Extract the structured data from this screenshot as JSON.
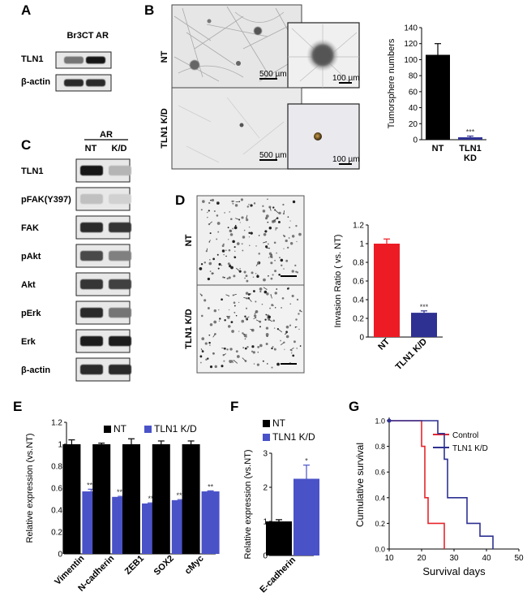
{
  "panels": {
    "A": {
      "letter": "A",
      "lanes": [
        "Br3CT",
        "AR"
      ],
      "rows": [
        {
          "label": "TLN1",
          "bands": [
            0.55,
            1.0
          ]
        },
        {
          "label": "β-actin",
          "bands": [
            0.9,
            0.9
          ]
        }
      ]
    },
    "B": {
      "letter": "B",
      "rows": [
        {
          "label": "NT",
          "scale_main": "500 µm",
          "scale_inset": "100 µm"
        },
        {
          "label": "TLN1 K/D",
          "scale_main": "500 µm",
          "scale_inset": "100 µm"
        }
      ]
    },
    "C": {
      "letter": "C",
      "group": "AR",
      "lanes": [
        "NT",
        "K/D"
      ],
      "rows": [
        {
          "label": "TLN1",
          "bands": [
            1.0,
            0.25
          ]
        },
        {
          "label": "pFAK(Y397)",
          "bands": [
            0.2,
            0.12
          ]
        },
        {
          "label": "FAK",
          "bands": [
            0.9,
            0.85
          ]
        },
        {
          "label": "pAkt",
          "bands": [
            0.75,
            0.5
          ]
        },
        {
          "label": "Akt",
          "bands": [
            0.85,
            0.8
          ]
        },
        {
          "label": "pErk",
          "bands": [
            0.9,
            0.55
          ]
        },
        {
          "label": "Erk",
          "bands": [
            0.95,
            0.95
          ]
        },
        {
          "label": "β-actin",
          "bands": [
            0.9,
            0.9
          ]
        }
      ]
    },
    "D": {
      "letter": "D",
      "rows": [
        {
          "label": "NT"
        },
        {
          "label": "TLN1 K/D"
        }
      ]
    },
    "E": {
      "letter": "E"
    },
    "F": {
      "letter": "F"
    },
    "G": {
      "letter": "G"
    }
  },
  "chart_data": [
    {
      "id": "B_chart",
      "type": "bar",
      "categories": [
        "NT",
        "TLN1\nKD"
      ],
      "values": [
        106,
        3
      ],
      "errors": [
        14,
        1.5
      ],
      "colors": [
        "#000000",
        "#2e3192"
      ],
      "annotations": [
        "",
        "***"
      ],
      "ylabel": "Tumorsphere numbers",
      "ylim": [
        0,
        140
      ],
      "yticks": [
        0,
        20,
        40,
        60,
        80,
        100,
        120,
        140
      ]
    },
    {
      "id": "D_chart",
      "type": "bar",
      "categories": [
        "NT",
        "TLN1 K/D"
      ],
      "values": [
        1.0,
        0.26
      ],
      "errors": [
        0.05,
        0.02
      ],
      "colors": [
        "#ed1c24",
        "#2e3192"
      ],
      "annotations": [
        "",
        "***"
      ],
      "ylabel": "Invasion Ratio ( vs. NT)",
      "ylim": [
        0,
        1.2
      ],
      "yticks": [
        0,
        0.2,
        0.4,
        0.6,
        0.8,
        1,
        1.2
      ]
    },
    {
      "id": "E_chart",
      "type": "bar",
      "categories": [
        "Vimentin",
        "N-cadherin",
        "ZEB1",
        "SOX2",
        "cMyc"
      ],
      "series": [
        {
          "name": "NT",
          "color": "#000000",
          "values": [
            1.0,
            1.0,
            1.0,
            1.0,
            1.0
          ],
          "errors": [
            0.04,
            0.01,
            0.05,
            0.03,
            0.03
          ],
          "annotations": [
            "",
            "",
            "",
            "",
            ""
          ]
        },
        {
          "name": "TLN1 K/D",
          "color": "#4a52c8",
          "values": [
            0.57,
            0.52,
            0.46,
            0.49,
            0.57
          ],
          "errors": [
            0.02,
            0.005,
            0.005,
            0.005,
            0.005
          ],
          "annotations": [
            "***",
            "***",
            "**",
            "***",
            "**"
          ]
        }
      ],
      "ylabel": "Relative expression (vs.NT)",
      "ylim": [
        0,
        1.2
      ],
      "yticks": [
        0,
        0.2,
        0.4,
        0.6,
        0.8,
        1,
        1.2
      ],
      "legend": "top"
    },
    {
      "id": "F_chart",
      "type": "bar",
      "categories": [
        "E-cadherin"
      ],
      "series": [
        {
          "name": "NT",
          "color": "#000000",
          "values": [
            1.0
          ],
          "errors": [
            0.05
          ],
          "annotations": [
            ""
          ]
        },
        {
          "name": "TLN1 K/D",
          "color": "#4a52c8",
          "values": [
            2.25
          ],
          "errors": [
            0.4
          ],
          "annotations": [
            "*"
          ]
        }
      ],
      "ylabel": "Relative expression (vs.NT)",
      "ylim": [
        0,
        3
      ],
      "yticks": [
        0,
        1,
        2,
        3
      ],
      "legend": "top"
    },
    {
      "id": "G_chart",
      "type": "line",
      "series": [
        {
          "name": "Control",
          "color": "#e8242c",
          "points": [
            [
              10,
              1.0
            ],
            [
              20,
              1.0
            ],
            [
              20,
              0.8
            ],
            [
              21,
              0.8
            ],
            [
              21,
              0.4
            ],
            [
              22,
              0.4
            ],
            [
              22,
              0.2
            ],
            [
              27,
              0.2
            ],
            [
              27,
              0.0
            ]
          ]
        },
        {
          "name": "TLN1 K/D",
          "color": "#2e3192",
          "points": [
            [
              10,
              1.0
            ],
            [
              25,
              1.0
            ],
            [
              25,
              0.9
            ],
            [
              27,
              0.9
            ],
            [
              27,
              0.7
            ],
            [
              28,
              0.7
            ],
            [
              28,
              0.4
            ],
            [
              34,
              0.4
            ],
            [
              34,
              0.2
            ],
            [
              38,
              0.2
            ],
            [
              38,
              0.1
            ],
            [
              42,
              0.1
            ],
            [
              42,
              0.0
            ]
          ]
        }
      ],
      "xlabel": "Survival days",
      "ylabel": "Cumulative survival",
      "xlim": [
        10,
        50
      ],
      "ylim": [
        0,
        1.0
      ],
      "xticks": [
        10,
        20,
        30,
        40,
        50
      ],
      "yticks": [
        0.0,
        0.2,
        0.4,
        0.6,
        0.8,
        1.0
      ],
      "legend": "top-right"
    }
  ]
}
